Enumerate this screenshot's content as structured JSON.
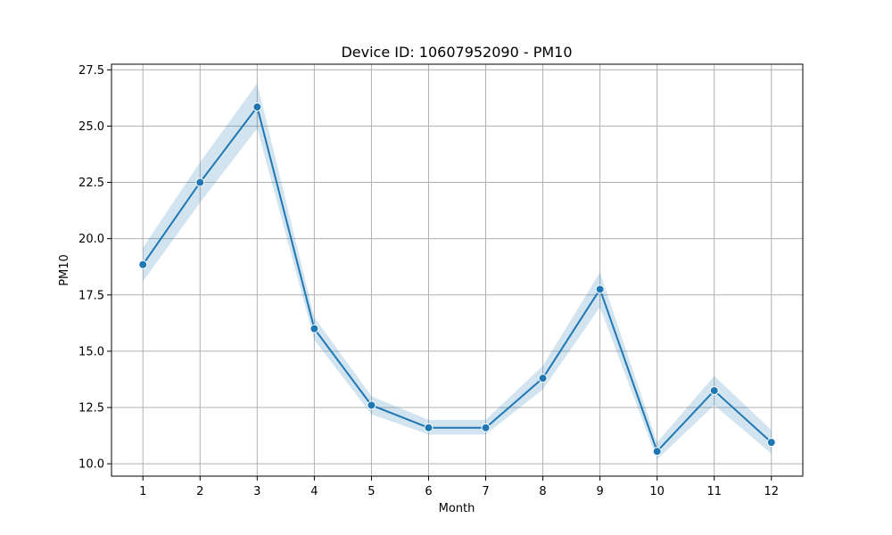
{
  "chart_data": {
    "type": "line",
    "title": "Device ID: 10607952090 - PM10",
    "xlabel": "Month",
    "ylabel": "PM10",
    "x": [
      1,
      2,
      3,
      4,
      5,
      6,
      7,
      8,
      9,
      10,
      11,
      12
    ],
    "xtick_labels": [
      "1",
      "2",
      "3",
      "4",
      "5",
      "6",
      "7",
      "8",
      "9",
      "10",
      "11",
      "12"
    ],
    "xlim": [
      0.45,
      12.55
    ],
    "ylim": [
      9.45,
      27.75
    ],
    "yticks": [
      10.0,
      12.5,
      15.0,
      17.5,
      20.0,
      22.5,
      25.0,
      27.5
    ],
    "ytick_labels": [
      "10.0",
      "12.5",
      "15.0",
      "17.5",
      "20.0",
      "22.5",
      "25.0",
      "27.5"
    ],
    "grid": true,
    "series": [
      {
        "name": "PM10",
        "values": [
          18.85,
          22.5,
          25.85,
          16.0,
          12.6,
          11.6,
          11.6,
          13.8,
          17.75,
          10.55,
          13.25,
          10.95
        ],
        "ci_lower": [
          18.1,
          21.6,
          24.9,
          15.5,
          12.2,
          11.3,
          11.3,
          13.3,
          16.95,
          10.2,
          12.6,
          10.45
        ],
        "ci_upper": [
          19.6,
          23.4,
          26.9,
          16.5,
          13.0,
          11.95,
          11.95,
          14.35,
          18.5,
          10.95,
          13.9,
          11.5
        ]
      }
    ],
    "colors": {
      "line": "#1f77b4",
      "band": "#1f77b4",
      "grid": "#b0b0b0",
      "axes": "#000000"
    }
  }
}
